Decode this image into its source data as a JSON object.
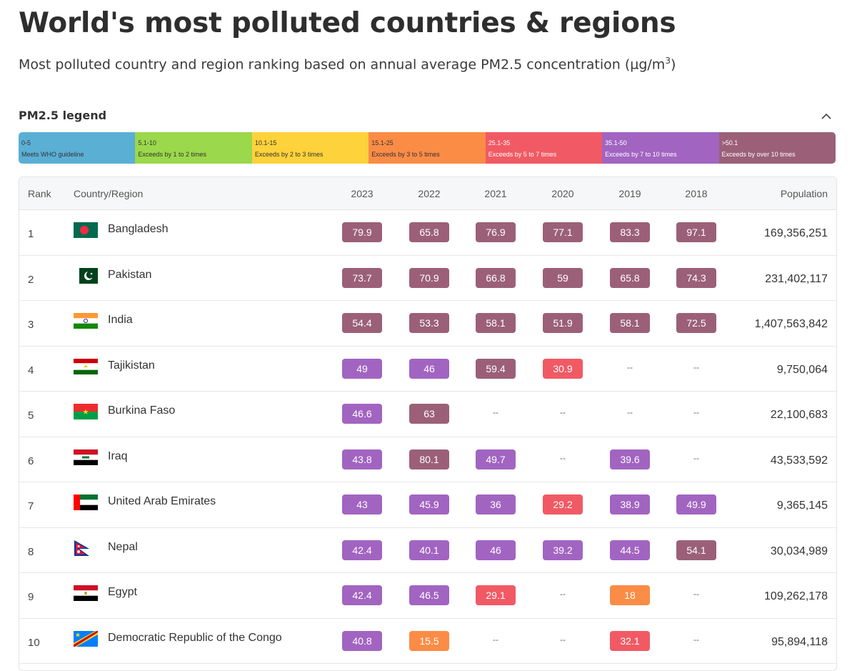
{
  "title": "World's most polluted countries & regions",
  "subtitle": "Most polluted country and region ranking based on annual average PM2.5 concentration (µg/m",
  "subtitle_sup": "3",
  "subtitle_end": ")",
  "legend": {
    "title": "PM2.5 legend",
    "collapse_icon": "chevron-up-icon",
    "segments": [
      {
        "range": "0-5",
        "desc": "Meets WHO guideline",
        "color": "#5aafd4"
      },
      {
        "range": "5.1-10",
        "desc": "Exceeds by 1 to 2 times",
        "color": "#9bd84b"
      },
      {
        "range": "10.1-15",
        "desc": "Exceeds by 2 to 3 times",
        "color": "#fdd23a"
      },
      {
        "range": "15.1-25",
        "desc": "Exceeds by 3 to 5 times",
        "color": "#fb8c46"
      },
      {
        "range": "25.1-35",
        "desc": "Exceeds by 5 to 7 times",
        "color": "#f15a64"
      },
      {
        "range": "35.1-50",
        "desc": "Exceeds by 7 to 10 times",
        "color": "#a264c1"
      },
      {
        "range": ">50.1",
        "desc": "Exceeds by over 10 times",
        "color": "#9b6078"
      }
    ]
  },
  "table": {
    "headers": {
      "rank": "Rank",
      "country": "Country/Region",
      "years": [
        "2023",
        "2022",
        "2021",
        "2020",
        "2019",
        "2018"
      ],
      "population": "Population"
    },
    "rows": [
      {
        "rank": "1",
        "country": "Bangladesh",
        "flag": "bangladesh-flag-icon",
        "values": [
          "79.9",
          "65.8",
          "76.9",
          "77.1",
          "83.3",
          "97.1"
        ],
        "population": "169,356,251"
      },
      {
        "rank": "2",
        "country": "Pakistan",
        "flag": "pakistan-flag-icon",
        "values": [
          "73.7",
          "70.9",
          "66.8",
          "59",
          "65.8",
          "74.3"
        ],
        "population": "231,402,117"
      },
      {
        "rank": "3",
        "country": "India",
        "flag": "india-flag-icon",
        "values": [
          "54.4",
          "53.3",
          "58.1",
          "51.9",
          "58.1",
          "72.5"
        ],
        "population": "1,407,563,842"
      },
      {
        "rank": "4",
        "country": "Tajikistan",
        "flag": "tajikistan-flag-icon",
        "values": [
          "49",
          "46",
          "59.4",
          "30.9",
          "--",
          "--"
        ],
        "population": "9,750,064"
      },
      {
        "rank": "5",
        "country": "Burkina Faso",
        "flag": "burkina-faso-flag-icon",
        "values": [
          "46.6",
          "63",
          "--",
          "--",
          "--",
          "--"
        ],
        "population": "22,100,683"
      },
      {
        "rank": "6",
        "country": "Iraq",
        "flag": "iraq-flag-icon",
        "values": [
          "43.8",
          "80.1",
          "49.7",
          "--",
          "39.6",
          "--"
        ],
        "population": "43,533,592"
      },
      {
        "rank": "7",
        "country": "United Arab Emirates",
        "flag": "uae-flag-icon",
        "values": [
          "43",
          "45.9",
          "36",
          "29.2",
          "38.9",
          "49.9"
        ],
        "population": "9,365,145"
      },
      {
        "rank": "8",
        "country": "Nepal",
        "flag": "nepal-flag-icon",
        "values": [
          "42.4",
          "40.1",
          "46",
          "39.2",
          "44.5",
          "54.1"
        ],
        "population": "30,034,989"
      },
      {
        "rank": "9",
        "country": "Egypt",
        "flag": "egypt-flag-icon",
        "values": [
          "42.4",
          "46.5",
          "29.1",
          "--",
          "18",
          "--"
        ],
        "population": "109,262,178"
      },
      {
        "rank": "10",
        "country": "Democratic Republic of the Congo",
        "flag": "drc-flag-icon",
        "values": [
          "40.8",
          "15.5",
          "--",
          "--",
          "32.1",
          "--"
        ],
        "population": "95,894,118"
      }
    ]
  }
}
